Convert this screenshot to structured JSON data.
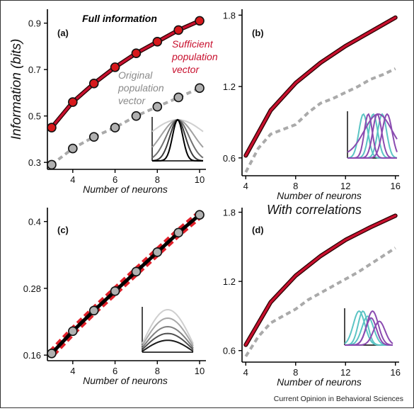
{
  "footer": "Current Opinion in Behavioral Sciences",
  "colors": {
    "sufficient": "#c8102e",
    "original": "#aaaaaa",
    "marker_red": "#d7191c",
    "marker_gray": "#b0b0b0",
    "dashed_panel_c": "#e0202a",
    "black": "#000000",
    "teal": "#5bc4c4",
    "purple": "#8a4bb0"
  },
  "chart_data": [
    {
      "panel": "(a)",
      "type": "line",
      "title": "Full information",
      "xlabel": "Number of neurons",
      "ylabel": "Information (bits)",
      "xlim": [
        2.8,
        10.3
      ],
      "ylim": [
        0.27,
        0.96
      ],
      "xticks": [
        4,
        6,
        8,
        10
      ],
      "yticks": [
        0.3,
        0.5,
        0.7,
        0.9
      ],
      "ytick_labels": [
        "0.3",
        "0.5",
        "0.7",
        "0.9"
      ],
      "series": [
        {
          "name": "Sufficient population vector",
          "style": "solid-red-markers",
          "x": [
            3,
            4,
            5,
            6,
            7,
            8,
            9,
            10
          ],
          "y": [
            0.45,
            0.56,
            0.64,
            0.71,
            0.77,
            0.82,
            0.87,
            0.91
          ]
        },
        {
          "name": "Original population vector",
          "style": "dashed-gray-markers",
          "x": [
            3,
            4,
            5,
            6,
            7,
            8,
            9,
            10
          ],
          "y": [
            0.29,
            0.36,
            0.41,
            0.45,
            0.5,
            0.54,
            0.58,
            0.62
          ]
        }
      ],
      "annotations": [
        {
          "text": [
            "Sufficient",
            "population",
            "vector"
          ],
          "color": "red"
        },
        {
          "text": [
            "Original",
            "population",
            "vector"
          ],
          "color": "gray"
        }
      ]
    },
    {
      "panel": "(b)",
      "type": "line",
      "xlabel": "Number of neurons",
      "xlim": [
        3.7,
        16.3
      ],
      "ylim": [
        0.45,
        1.85
      ],
      "xticks": [
        4,
        8,
        12,
        16
      ],
      "yticks": [
        0.6,
        1.2,
        1.8
      ],
      "ytick_labels": [
        "0.6",
        "1.2",
        "1.8"
      ],
      "series": [
        {
          "style": "solid-red",
          "x": [
            4,
            6,
            8,
            10,
            12,
            14,
            16
          ],
          "y": [
            0.62,
            1.0,
            1.23,
            1.4,
            1.54,
            1.66,
            1.78
          ]
        },
        {
          "style": "dashed-gray",
          "x": [
            4,
            5,
            6,
            7,
            8,
            9,
            10,
            11,
            12,
            13,
            14,
            15,
            16
          ],
          "y": [
            0.48,
            0.68,
            0.8,
            0.84,
            0.88,
            0.98,
            1.06,
            1.1,
            1.15,
            1.2,
            1.26,
            1.3,
            1.35
          ]
        }
      ]
    },
    {
      "panel": "(c)",
      "type": "line",
      "xlabel": "Number of neurons",
      "xlim": [
        2.8,
        10.3
      ],
      "ylim": [
        0.15,
        0.425
      ],
      "xticks": [
        4,
        6,
        8,
        10
      ],
      "yticks": [
        0.16,
        0.28,
        0.4
      ],
      "ytick_labels": [
        "0.16",
        "0.28",
        "0.4"
      ],
      "series": [
        {
          "style": "dashed-red-wide",
          "x": [
            3,
            4,
            5,
            6,
            7,
            8,
            9,
            10
          ],
          "y": [
            0.163,
            0.203,
            0.24,
            0.275,
            0.31,
            0.345,
            0.38,
            0.412
          ]
        },
        {
          "style": "solid-black-markers",
          "x": [
            3,
            4,
            5,
            6,
            7,
            8,
            9,
            10
          ],
          "y": [
            0.163,
            0.203,
            0.24,
            0.275,
            0.31,
            0.345,
            0.38,
            0.412
          ]
        }
      ]
    },
    {
      "panel": "(d)",
      "type": "line",
      "title": "With correlations",
      "xlabel": "Number of neurons",
      "xlim": [
        3.7,
        16.3
      ],
      "ylim": [
        0.5,
        1.84
      ],
      "xticks": [
        4,
        8,
        12,
        16
      ],
      "yticks": [
        0.6,
        1.2,
        1.8
      ],
      "ytick_labels": [
        "0.6",
        "1.2",
        "1.8"
      ],
      "series": [
        {
          "style": "solid-red",
          "x": [
            4,
            6,
            8,
            10,
            12,
            14,
            16
          ],
          "y": [
            0.65,
            1.02,
            1.25,
            1.42,
            1.56,
            1.67,
            1.77
          ]
        },
        {
          "style": "dashed-gray",
          "x": [
            4,
            5,
            6,
            7,
            8,
            9,
            10,
            11,
            12,
            13,
            14,
            15,
            16
          ],
          "y": [
            0.55,
            0.72,
            0.84,
            0.9,
            0.96,
            1.04,
            1.1,
            1.16,
            1.22,
            1.28,
            1.35,
            1.42,
            1.49
          ]
        }
      ]
    }
  ]
}
